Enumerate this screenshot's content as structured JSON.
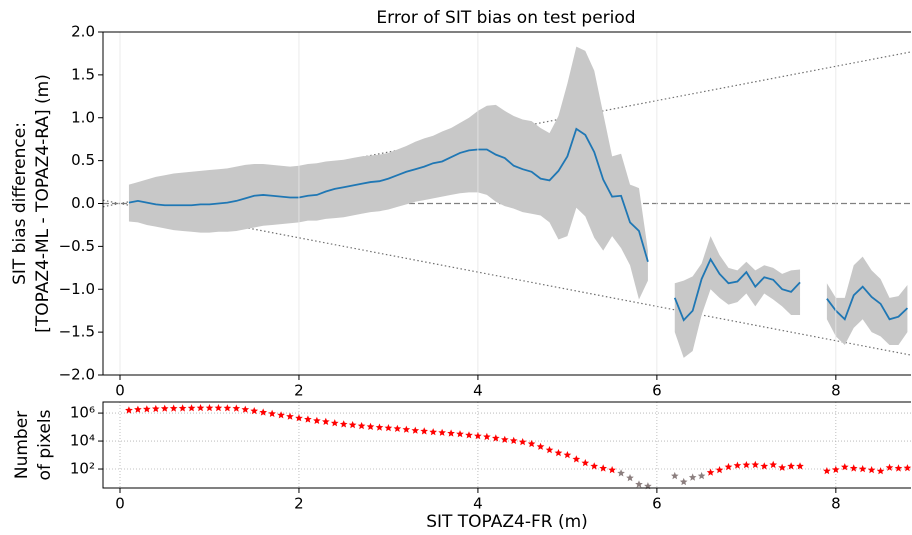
{
  "chart_data": [
    {
      "type": "line",
      "title": "Error of SIT bias on test period",
      "y_label": [
        "SIT bias difference:",
        "[TOPAZ4-ML - TOPAZ4-RA] (m)"
      ],
      "x": [
        0.1,
        0.2,
        0.3,
        0.4,
        0.5,
        0.6,
        0.7,
        0.8,
        0.9,
        1.0,
        1.1,
        1.2,
        1.3,
        1.4,
        1.5,
        1.6,
        1.7,
        1.8,
        1.9,
        2.0,
        2.1,
        2.2,
        2.3,
        2.4,
        2.5,
        2.6,
        2.7,
        2.8,
        2.9,
        3.0,
        3.1,
        3.2,
        3.3,
        3.4,
        3.5,
        3.6,
        3.7,
        3.8,
        3.9,
        4.0,
        4.1,
        4.2,
        4.3,
        4.4,
        4.5,
        4.6,
        4.7,
        4.8,
        4.9,
        5.0,
        5.1,
        5.2,
        5.3,
        5.4,
        5.5,
        5.6,
        5.7,
        5.8,
        5.9,
        6.0,
        6.1,
        6.2,
        6.3,
        6.4,
        6.5,
        6.6,
        6.7,
        6.8,
        6.9,
        7.0,
        7.1,
        7.2,
        7.3,
        7.4,
        7.5,
        7.6,
        7.7,
        7.8,
        7.9,
        8.0,
        8.1,
        8.2,
        8.3,
        8.4,
        8.5,
        8.6,
        8.7,
        8.8
      ],
      "series": [
        {
          "color": "#1f77b4",
          "band_color": "#c8c8c8",
          "values": [
            0.01,
            0.03,
            0.01,
            -0.01,
            -0.02,
            -0.02,
            -0.02,
            -0.02,
            -0.01,
            -0.01,
            0.0,
            0.01,
            0.03,
            0.06,
            0.09,
            0.1,
            0.09,
            0.08,
            0.07,
            0.07,
            0.09,
            0.1,
            0.14,
            0.17,
            0.19,
            0.21,
            0.23,
            0.25,
            0.26,
            0.29,
            0.33,
            0.37,
            0.4,
            0.43,
            0.47,
            0.49,
            0.54,
            0.59,
            0.62,
            0.63,
            0.63,
            0.57,
            0.53,
            0.44,
            0.4,
            0.37,
            0.29,
            0.27,
            0.38,
            0.55,
            0.87,
            0.8,
            0.6,
            0.28,
            0.08,
            0.09,
            -0.22,
            -0.32,
            -0.68,
            null,
            null,
            -1.1,
            -1.36,
            -1.25,
            -0.88,
            -0.65,
            -0.82,
            -0.93,
            -0.91,
            -0.8,
            -0.97,
            -0.86,
            -0.89,
            -1.0,
            -1.03,
            -0.92,
            null,
            null,
            -1.11,
            -1.25,
            -1.35,
            -1.07,
            -0.97,
            -1.09,
            -1.17,
            -1.35,
            -1.32,
            -1.22
          ],
          "upper": [
            0.22,
            0.25,
            0.28,
            0.31,
            0.33,
            0.35,
            0.36,
            0.37,
            0.38,
            0.39,
            0.4,
            0.41,
            0.43,
            0.45,
            0.46,
            0.46,
            0.45,
            0.44,
            0.43,
            0.44,
            0.46,
            0.47,
            0.49,
            0.5,
            0.51,
            0.53,
            0.55,
            0.56,
            0.57,
            0.59,
            0.63,
            0.67,
            0.72,
            0.76,
            0.79,
            0.84,
            0.88,
            0.94,
            1.0,
            1.08,
            1.14,
            1.15,
            1.08,
            1.02,
            0.98,
            0.96,
            0.88,
            0.82,
            1.02,
            1.4,
            1.83,
            1.78,
            1.55,
            1.05,
            0.55,
            0.58,
            0.22,
            0.18,
            -0.55,
            null,
            null,
            -0.93,
            -0.9,
            -0.85,
            -0.7,
            -0.38,
            -0.6,
            -0.75,
            -0.78,
            -0.68,
            -0.78,
            -0.72,
            -0.75,
            -0.82,
            -0.78,
            -0.77,
            null,
            null,
            -0.93,
            -1.1,
            -1.1,
            -0.72,
            -0.62,
            -0.78,
            -0.88,
            -1.1,
            -1.08,
            -0.95
          ],
          "lower": [
            -0.21,
            -0.22,
            -0.25,
            -0.27,
            -0.29,
            -0.31,
            -0.32,
            -0.33,
            -0.34,
            -0.34,
            -0.33,
            -0.33,
            -0.32,
            -0.3,
            -0.28,
            -0.26,
            -0.25,
            -0.24,
            -0.23,
            -0.22,
            -0.2,
            -0.2,
            -0.18,
            -0.17,
            -0.16,
            -0.14,
            -0.12,
            -0.1,
            -0.09,
            -0.07,
            -0.04,
            -0.01,
            0.02,
            0.04,
            0.06,
            0.08,
            0.1,
            0.12,
            0.13,
            0.13,
            0.1,
            0.02,
            -0.03,
            -0.06,
            -0.1,
            -0.12,
            -0.14,
            -0.22,
            -0.42,
            -0.38,
            -0.05,
            -0.15,
            -0.4,
            -0.55,
            -0.38,
            -0.52,
            -0.72,
            -1.12,
            -0.9,
            null,
            null,
            -1.5,
            -1.8,
            -1.72,
            -1.3,
            -1.0,
            -1.1,
            -1.18,
            -1.15,
            -1.05,
            -1.2,
            -1.05,
            -1.12,
            -1.2,
            -1.3,
            -1.3,
            null,
            null,
            -1.35,
            -1.55,
            -1.65,
            -1.45,
            -1.35,
            -1.5,
            -1.55,
            -1.65,
            -1.65,
            -1.5
          ]
        }
      ],
      "reference_lines": [
        {
          "slope": 0,
          "style": "dashed",
          "color": "#808080"
        },
        {
          "slope": 0.2,
          "style": "dotted",
          "color": "#707070"
        },
        {
          "slope": -0.2,
          "style": "dotted",
          "color": "#707070"
        }
      ],
      "xlim": [
        -0.19,
        8.84
      ],
      "xticks": [
        0,
        2,
        4,
        6,
        8
      ],
      "ylim": [
        -2,
        2
      ],
      "yticks": [
        {
          "value": -2,
          "label": "−2.0"
        },
        {
          "value": -1.5,
          "label": "−1.5"
        },
        {
          "value": -1,
          "label": "−1.0"
        },
        {
          "value": -0.5,
          "label": "−0.5"
        },
        {
          "value": 0,
          "label": "0.0"
        },
        {
          "value": 0.5,
          "label": "0.5"
        },
        {
          "value": 1,
          "label": "1.0"
        },
        {
          "value": 1.5,
          "label": "1.5"
        },
        {
          "value": 2,
          "label": "2.0"
        }
      ],
      "grid": "x"
    },
    {
      "type": "scatter",
      "x_label": "SIT TOPAZ4-FR (m)",
      "y_label": [
        "Number",
        "of pixels"
      ],
      "x": [
        0.1,
        0.2,
        0.3,
        0.4,
        0.5,
        0.6,
        0.7,
        0.8,
        0.9,
        1.0,
        1.1,
        1.2,
        1.3,
        1.4,
        1.5,
        1.6,
        1.7,
        1.8,
        1.9,
        2.0,
        2.1,
        2.2,
        2.3,
        2.4,
        2.5,
        2.6,
        2.7,
        2.8,
        2.9,
        3.0,
        3.1,
        3.2,
        3.3,
        3.4,
        3.5,
        3.6,
        3.7,
        3.8,
        3.9,
        4.0,
        4.1,
        4.2,
        4.3,
        4.4,
        4.5,
        4.6,
        4.7,
        4.8,
        4.9,
        5.0,
        5.1,
        5.2,
        5.3,
        5.4,
        5.5,
        5.6,
        5.7,
        5.8,
        5.9,
        6.0,
        6.1,
        6.2,
        6.3,
        6.4,
        6.5,
        6.6,
        6.7,
        6.8,
        6.9,
        7.0,
        7.1,
        7.2,
        7.3,
        7.4,
        7.5,
        7.6,
        7.7,
        7.8,
        7.9,
        8.0,
        8.1,
        8.2,
        8.3,
        8.4,
        8.5,
        8.6,
        8.7,
        8.8
      ],
      "series": [
        {
          "color": "#ff0000",
          "values": [
            1580000,
            1780000,
            1910000,
            2000000,
            2090000,
            2140000,
            2190000,
            2240000,
            2290000,
            2290000,
            2290000,
            2240000,
            2140000,
            1780000,
            1410000,
            1120000,
            891000,
            708000,
            562000,
            437000,
            355000,
            282000,
            240000,
            191000,
            158000,
            141000,
            120000,
            105000,
            93300,
            85100,
            75900,
            66100,
            56200,
            50100,
            43700,
            39800,
            35500,
            31600,
            26300,
            22900,
            20000,
            15800,
            12600,
            10500,
            8510,
            6310,
            3980,
            2290,
            1410,
            1000,
            501,
            269,
            158,
            112,
            85,
            50,
            23,
            8,
            6,
            null,
            null,
            32,
            12,
            25,
            32,
            56,
            85,
            141,
            178,
            195,
            200,
            158,
            200,
            126,
            158,
            158,
            null,
            null,
            72,
            89,
            138,
            112,
            100,
            85,
            71,
            126,
            112,
            117
          ],
          "point_colors": [
            "#ff0000",
            "#ff0000",
            "#ff0000",
            "#ff0000",
            "#ff0000",
            "#ff0000",
            "#ff0000",
            "#ff0000",
            "#ff0000",
            "#ff0000",
            "#ff0000",
            "#ff0000",
            "#ff0000",
            "#ff0000",
            "#ff0000",
            "#ff0000",
            "#ff0000",
            "#ff0000",
            "#ff0000",
            "#ff0000",
            "#ff0000",
            "#ff0000",
            "#ff0000",
            "#ff0000",
            "#ff0000",
            "#ff0000",
            "#ff0000",
            "#ff0000",
            "#ff0000",
            "#ff0000",
            "#ff0000",
            "#ff0000",
            "#ff0000",
            "#ff0000",
            "#ff0000",
            "#ff0000",
            "#ff0000",
            "#ff0000",
            "#ff0000",
            "#ff0000",
            "#ff0000",
            "#ff0000",
            "#ff0000",
            "#ff0000",
            "#ff0000",
            "#ff0000",
            "#ff0000",
            "#ff0000",
            "#ff0000",
            "#ff0000",
            "#ff0000",
            "#ff0000",
            "#ff0000",
            "#ff0000",
            "#ff0000",
            "#8c7f7f",
            "#8c7f7f",
            "#8c7f7f",
            "#8c7f7f",
            null,
            null,
            "#8c7f7f",
            "#8c7f7f",
            "#8c7f7f",
            "#8c7f7f",
            "#ff0000",
            "#ff0000",
            "#ff0000",
            "#ff0000",
            "#ff0000",
            "#ff0000",
            "#ff0000",
            "#ff0000",
            "#ff0000",
            "#ff0000",
            "#ff0000",
            null,
            null,
            "#ff0000",
            "#ff0000",
            "#ff0000",
            "#ff0000",
            "#ff0000",
            "#ff0000",
            "#ff0000",
            "#ff0000",
            "#ff0000",
            "#ff0000"
          ]
        }
      ],
      "xlim": [
        -0.19,
        8.84
      ],
      "xticks": [
        0,
        2,
        4,
        6,
        8
      ],
      "log_y": true,
      "ylim": [
        4.4,
        6200000
      ],
      "yticks": [
        {
          "value": 100,
          "label": "10²"
        },
        {
          "value": 10000,
          "label": "10⁴"
        },
        {
          "value": 1000000,
          "label": "10⁶"
        }
      ],
      "grid": "both"
    }
  ]
}
